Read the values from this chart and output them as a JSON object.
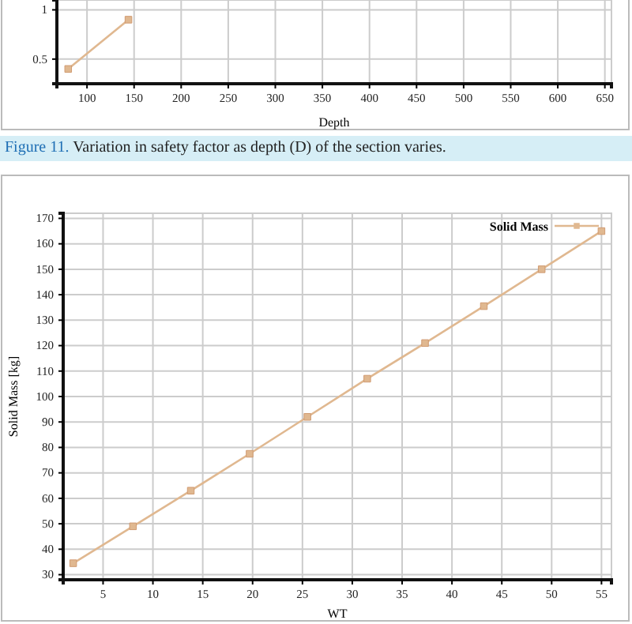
{
  "chart_data": [
    {
      "type": "line",
      "xlabel": "Depth",
      "xlim": [
        68,
        657
      ],
      "ylim": [
        0.25,
        1.1
      ],
      "xticks": [
        100,
        150,
        200,
        250,
        300,
        350,
        400,
        450,
        500,
        550,
        600,
        650
      ],
      "yticks": [
        0.5,
        1
      ],
      "grid": true,
      "marker": "square",
      "series": [
        {
          "color": "#e0b890",
          "x": [
            80,
            144
          ],
          "values": [
            0.4,
            0.9
          ]
        }
      ],
      "annotations": [
        "Figure 11. Variation in safety factor as depth (D) of the section varies."
      ]
    },
    {
      "type": "line",
      "xlabel": "WT",
      "ylabel": "Solid Mass [kg]",
      "xlim": [
        1,
        56
      ],
      "ylim": [
        28,
        172
      ],
      "xticks": [
        5,
        10,
        15,
        20,
        25,
        30,
        35,
        40,
        45,
        50,
        55
      ],
      "yticks": [
        30,
        40,
        50,
        60,
        70,
        80,
        90,
        100,
        110,
        120,
        130,
        140,
        150,
        160,
        170
      ],
      "grid": true,
      "marker": "square",
      "legend": "top right",
      "series": [
        {
          "name": "Solid Mass",
          "color": "#e0b890",
          "x": [
            2,
            8,
            13.8,
            19.7,
            25.5,
            31.5,
            37.3,
            43.2,
            49,
            55
          ],
          "values": [
            34.5,
            49,
            63,
            77.5,
            92,
            107,
            121,
            135.5,
            150,
            165
          ]
        }
      ]
    }
  ]
}
